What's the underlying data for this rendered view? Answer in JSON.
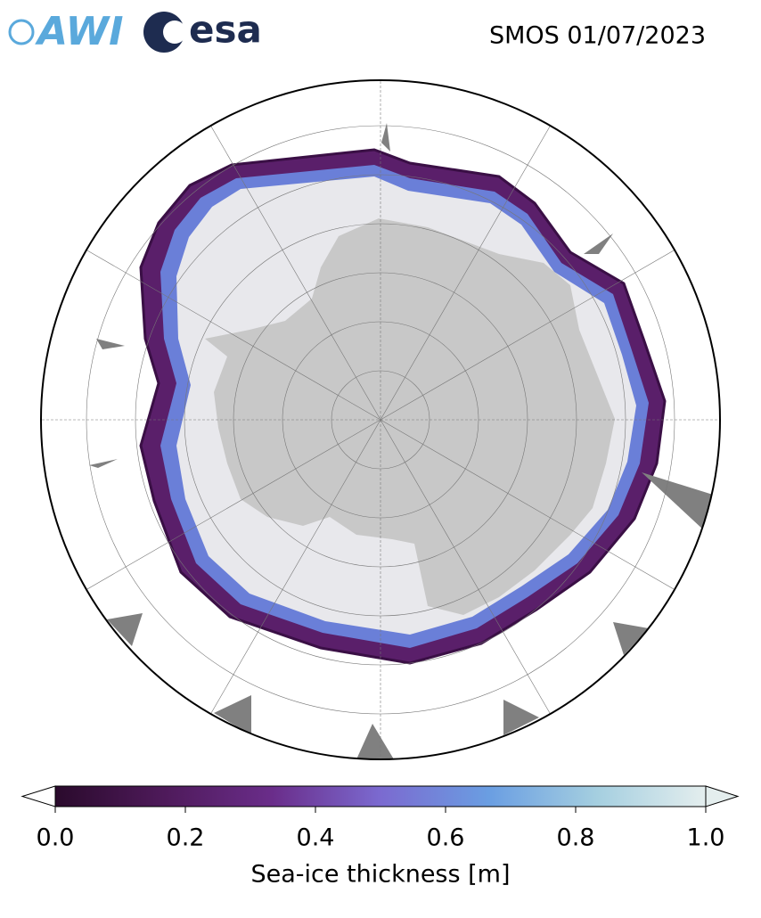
{
  "header": {
    "logo_awi": "AWI",
    "logo_esa": "esa",
    "title": "SMOS 01/07/2023"
  },
  "colorbar": {
    "label": "Sea-ice thickness [m]",
    "lim": [
      0,
      1
    ],
    "ticks": [
      {
        "value": 0,
        "label": "0.0"
      },
      0.2,
      0.4,
      0.6,
      0.8,
      {
        "value": 1,
        "label": "1.0"
      }
    ],
    "colors": [
      "#2a0a2c",
      "#4e1a5a",
      "#6a2d8a",
      "#7b6ad0",
      "#6a9ee2",
      "#a5cfe0",
      "#e4eeee"
    ]
  }
}
